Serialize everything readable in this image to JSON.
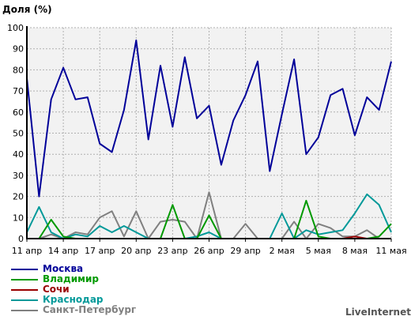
{
  "chart_data": {
    "type": "line",
    "ylabel": "Доля (%)",
    "ylim": [
      0,
      100
    ],
    "yticks": [
      0,
      10,
      20,
      30,
      40,
      50,
      60,
      70,
      80,
      90,
      100
    ],
    "grid": true,
    "legend_placement": "bottom-left",
    "x_tick_labels": [
      "11 апр",
      "14 апр",
      "17 апр",
      "20 апр",
      "23 апр",
      "26 апр",
      "29 апр",
      "2 мая",
      "5 мая",
      "8 мая",
      "11 мая"
    ],
    "x": [
      "11 апр",
      "12 апр",
      "13 апр",
      "14 апр",
      "15 апр",
      "16 апр",
      "17 апр",
      "18 апр",
      "19 апр",
      "20 апр",
      "21 апр",
      "22 апр",
      "23 апр",
      "24 апр",
      "25 апр",
      "26 апр",
      "27 апр",
      "28 апр",
      "29 апр",
      "30 апр",
      "1 мая",
      "2 мая",
      "3 мая",
      "4 мая",
      "5 мая",
      "6 мая",
      "7 мая",
      "8 мая",
      "9 мая",
      "10 мая",
      "11 мая"
    ],
    "series": [
      {
        "name": "Москва",
        "color": "#000099",
        "values": [
          76,
          20,
          66,
          81,
          66,
          67,
          45,
          41,
          61,
          94,
          47,
          82,
          53,
          86,
          57,
          63,
          35,
          56,
          68,
          84,
          32,
          59,
          85,
          40,
          48,
          68,
          71,
          49,
          67,
          61,
          84
        ]
      },
      {
        "name": "Владимир",
        "color": "#009900",
        "values": [
          0,
          0,
          9,
          1,
          0,
          0,
          0,
          0,
          0,
          0,
          0,
          0,
          16,
          0,
          0,
          11,
          0,
          0,
          0,
          0,
          0,
          0,
          0,
          18,
          1,
          0,
          0,
          0,
          0,
          1,
          7
        ]
      },
      {
        "name": "Сочи",
        "color": "#990000",
        "values": [
          0,
          0,
          0,
          0,
          0,
          0,
          0,
          0,
          0,
          0,
          0,
          0,
          0,
          0,
          0,
          0,
          0,
          0,
          0,
          0,
          0,
          0,
          0,
          0,
          0,
          0,
          0,
          1,
          0,
          0,
          0
        ]
      },
      {
        "name": "Краснодар",
        "color": "#009999",
        "values": [
          3,
          15,
          3,
          0,
          2,
          1,
          6,
          3,
          6,
          3,
          0,
          0,
          0,
          0,
          1,
          3,
          0,
          0,
          0,
          0,
          0,
          12,
          0,
          4,
          2,
          3,
          4,
          12,
          21,
          16,
          3
        ]
      },
      {
        "name": "Санкт-Петербург",
        "color": "#808080",
        "values": [
          0,
          0,
          2,
          0,
          3,
          2,
          10,
          13,
          1,
          13,
          0,
          8,
          9,
          8,
          0,
          22,
          0,
          0,
          7,
          0,
          0,
          0,
          8,
          0,
          7,
          5,
          1,
          1,
          4,
          0,
          0
        ]
      }
    ]
  },
  "brand": "LiveInternet"
}
